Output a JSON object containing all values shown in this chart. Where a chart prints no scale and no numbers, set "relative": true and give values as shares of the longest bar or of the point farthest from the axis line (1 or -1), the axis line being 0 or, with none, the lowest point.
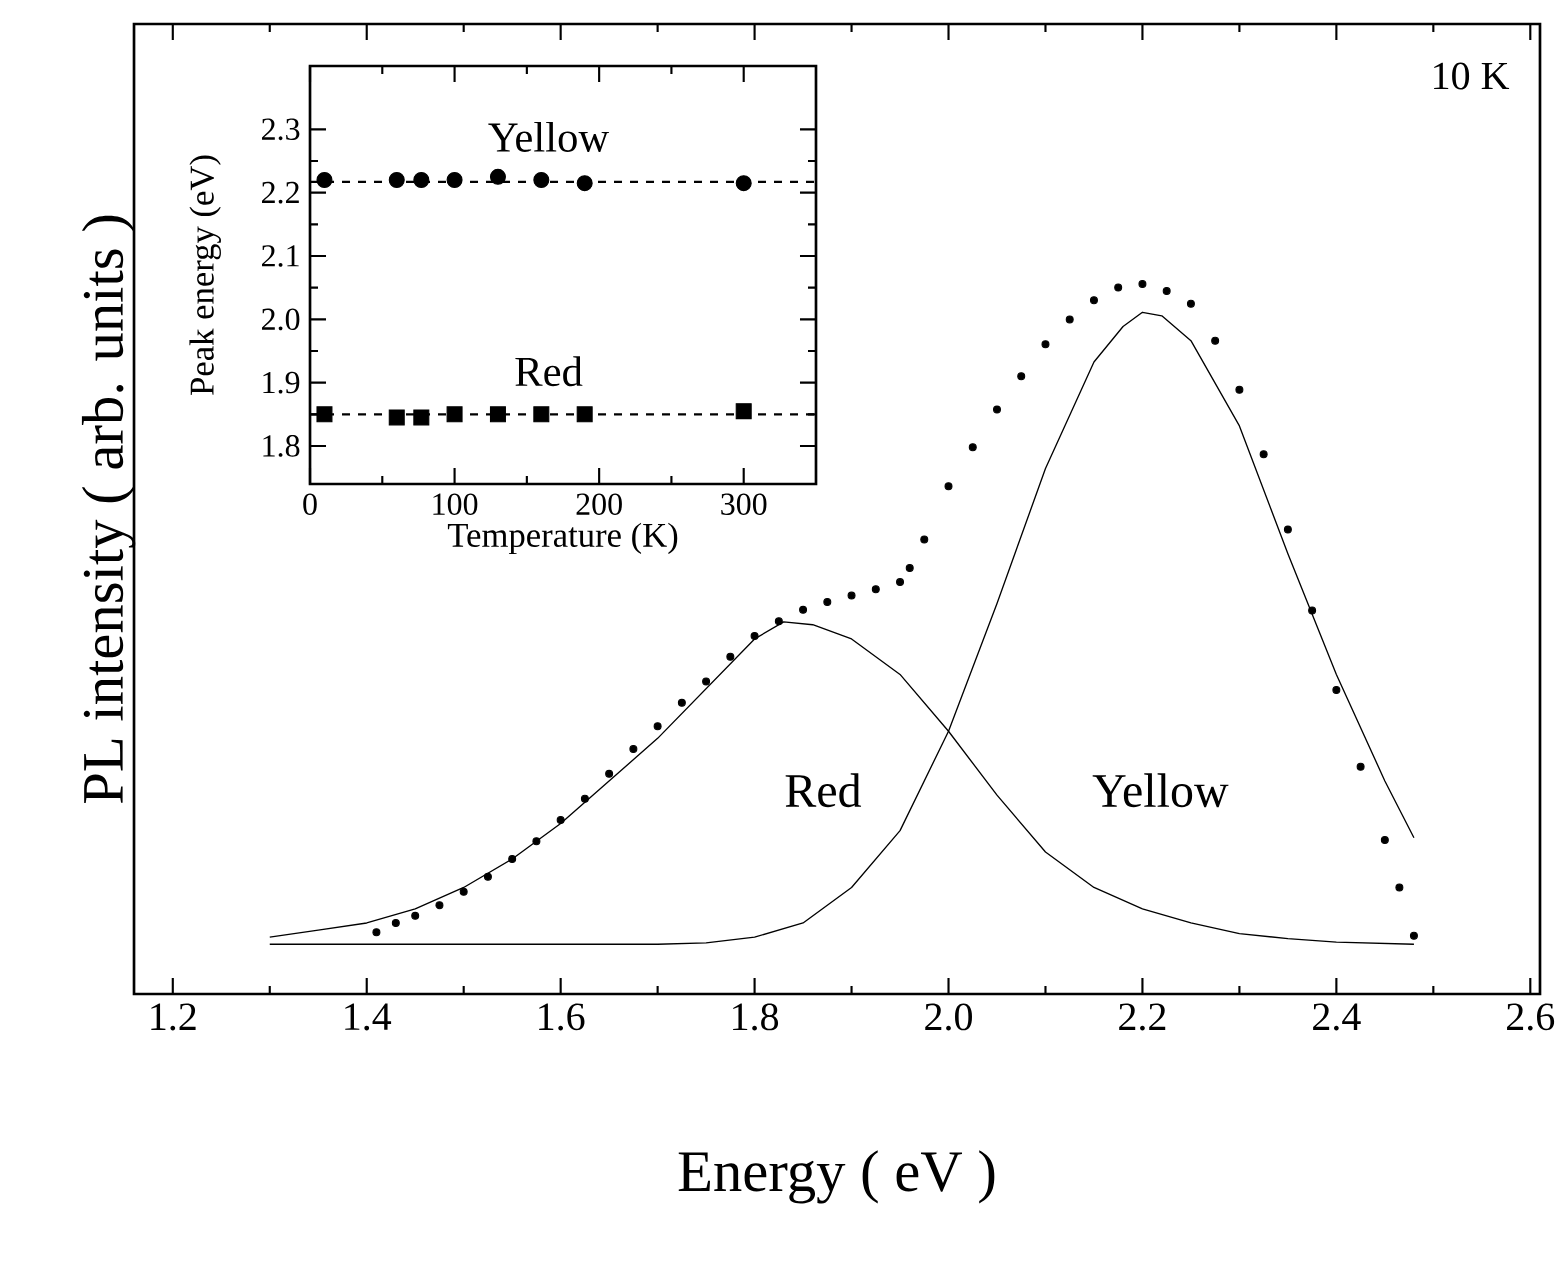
{
  "chart_data": [
    {
      "type": "scatter",
      "xlabel": "Energy ( eV )",
      "ylabel": "PL intensity ( arb. units )",
      "relative": true,
      "tick_labels": "x",
      "xlim": [
        1.16,
        2.61
      ],
      "xticks": [
        {
          "value": 1.2,
          "label": "1.2"
        },
        {
          "value": 1.4,
          "label": "1.4"
        },
        {
          "value": 1.6,
          "label": "1.6"
        },
        {
          "value": 1.8,
          "label": "1.8"
        },
        {
          "value": 2.0,
          "label": "2.0"
        },
        {
          "value": 2.2,
          "label": "2.2"
        },
        {
          "value": 2.4,
          "label": "2.4"
        },
        {
          "value": 2.6,
          "label": "2.6"
        }
      ],
      "marker": "circle",
      "series": [
        {
          "color": "#000000",
          "x": [
            1.41,
            1.43,
            1.45,
            1.475,
            1.5,
            1.525,
            1.55,
            1.575,
            1.6,
            1.625,
            1.65,
            1.675,
            1.7,
            1.725,
            1.75,
            1.775,
            1.8,
            1.825,
            1.85,
            1.875,
            1.9,
            1.925,
            1.95,
            1.96,
            1.975,
            2.0,
            2.025,
            2.05,
            2.075,
            2.1,
            2.125,
            2.15,
            2.175,
            2.2,
            2.225,
            2.25,
            2.275,
            2.3,
            2.325,
            2.35,
            2.375,
            2.4,
            2.425,
            2.45,
            2.465,
            2.48
          ],
          "values": [
            0.087,
            0.1,
            0.11,
            0.125,
            0.144,
            0.165,
            0.19,
            0.215,
            0.245,
            0.275,
            0.31,
            0.345,
            0.377,
            0.41,
            0.44,
            0.475,
            0.504,
            0.525,
            0.541,
            0.552,
            0.561,
            0.57,
            0.58,
            0.6,
            0.64,
            0.715,
            0.77,
            0.823,
            0.87,
            0.915,
            0.95,
            0.977,
            0.995,
            1.0,
            0.99,
            0.972,
            0.92,
            0.851,
            0.76,
            0.654,
            0.54,
            0.428,
            0.32,
            0.217,
            0.15,
            0.082
          ]
        },
        {
          "type": "line",
          "marker": "none",
          "color": "#000000",
          "x": [
            1.3,
            1.35,
            1.4,
            1.45,
            1.5,
            1.55,
            1.6,
            1.65,
            1.7,
            1.75,
            1.8,
            1.83,
            1.86,
            1.9,
            1.95,
            2.0,
            2.05,
            2.1,
            2.15,
            2.2,
            2.25,
            2.3,
            2.35,
            2.4,
            2.48
          ],
          "values": [
            0.08,
            0.09,
            0.1,
            0.12,
            0.15,
            0.19,
            0.24,
            0.3,
            0.36,
            0.43,
            0.5,
            0.524,
            0.52,
            0.5,
            0.45,
            0.37,
            0.28,
            0.2,
            0.15,
            0.12,
            0.1,
            0.085,
            0.078,
            0.073,
            0.07
          ]
        },
        {
          "type": "line",
          "marker": "none",
          "color": "#000000",
          "x": [
            1.3,
            1.5,
            1.7,
            1.75,
            1.8,
            1.85,
            1.9,
            1.95,
            2.0,
            2.05,
            2.1,
            2.15,
            2.18,
            2.2,
            2.22,
            2.25,
            2.3,
            2.35,
            2.4,
            2.45,
            2.48
          ],
          "values": [
            0.07,
            0.07,
            0.07,
            0.072,
            0.08,
            0.1,
            0.15,
            0.23,
            0.37,
            0.55,
            0.74,
            0.89,
            0.94,
            0.96,
            0.955,
            0.92,
            0.8,
            0.62,
            0.45,
            0.3,
            0.22
          ]
        }
      ],
      "annotations": [
        "Red",
        "Yellow",
        "10 K"
      ]
    },
    {
      "type": "scatter",
      "xlabel": "Temperature (K)",
      "ylabel": "Peak energy (eV)",
      "xlim": [
        0,
        350
      ],
      "xticks": [
        0,
        100,
        200,
        300
      ],
      "ylim": [
        1.74,
        2.4
      ],
      "yticks": [
        {
          "value": 1.8,
          "label": "1.8"
        },
        {
          "value": 1.9,
          "label": "1.9"
        },
        {
          "value": 2.0,
          "label": "2.0"
        },
        {
          "value": 2.1,
          "label": "2.1"
        },
        {
          "value": 2.2,
          "label": "2.2"
        },
        {
          "value": 2.3,
          "label": "2.3"
        }
      ],
      "series": [
        {
          "name": "Yellow",
          "marker": "circle",
          "color": "#000000",
          "x": [
            10,
            60,
            77,
            100,
            130,
            160,
            190,
            300
          ],
          "values": [
            2.22,
            2.22,
            2.22,
            2.22,
            2.225,
            2.22,
            2.215,
            2.215
          ]
        },
        {
          "name": "Red",
          "marker": "square",
          "color": "#000000",
          "x": [
            10,
            60,
            77,
            100,
            130,
            160,
            190,
            300
          ],
          "values": [
            1.85,
            1.845,
            1.845,
            1.85,
            1.85,
            1.85,
            1.85,
            1.855
          ]
        }
      ],
      "ref_lines": [
        {
          "axis": "y",
          "value": 2.217,
          "line_style": "dashed"
        },
        {
          "axis": "y",
          "value": 1.85,
          "line_style": "dashed"
        }
      ]
    }
  ]
}
